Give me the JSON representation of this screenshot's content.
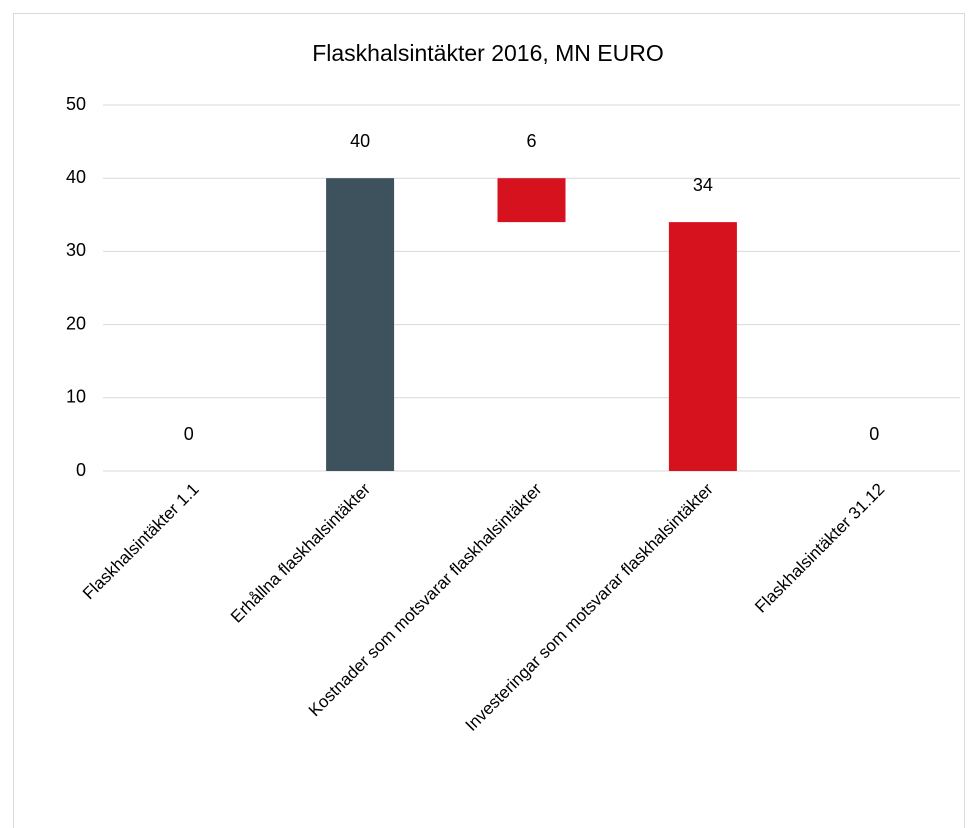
{
  "chart_data": {
    "type": "waterfall",
    "title": "Flaskhalsintäkter 2016, MN EURO",
    "categories": [
      "Flaskhalsintäkter 1.1",
      "Erhållna flaskhalsintäkter",
      "Kostnader som motsvarar flaskhalsintäkter",
      "Investeringar som motsvarar flaskhalsintäkter",
      "Flaskhalsintäkter 31.12"
    ],
    "values": [
      0,
      40,
      6,
      34,
      0
    ],
    "directions": [
      "total",
      "up",
      "down",
      "down",
      "total"
    ],
    "up_color": "#3d525c",
    "down_color": "#d7121f",
    "total_color": "#3d525c",
    "ylim": [
      0,
      50
    ],
    "yticks": [
      0,
      10,
      20,
      30,
      40,
      50
    ],
    "grid": true
  }
}
